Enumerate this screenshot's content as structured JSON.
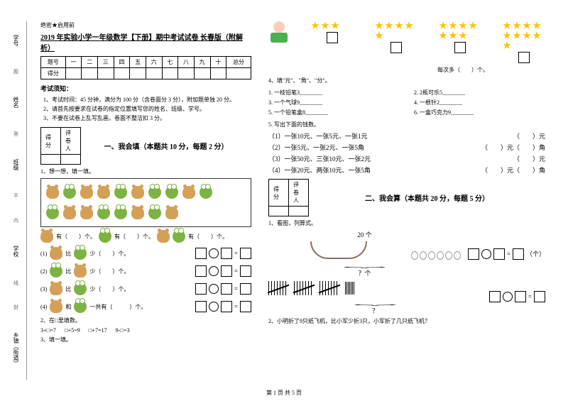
{
  "header": {
    "confidential": "绝密★启用前",
    "title": "2019 年实验小学一年级数学【下册】期中考试试卷 长春版（附解析）"
  },
  "sidebar": {
    "s1": "学号",
    "s2": "姓名",
    "s3": "班级",
    "s4": "学校",
    "s5": "乡镇（街道）",
    "cut": "内",
    "fold": "线",
    "seal": "封",
    "n1": "不",
    "n2": "答",
    "n3": "题"
  },
  "score_table": {
    "h0": "题号",
    "h1": "一",
    "h2": "二",
    "h3": "三",
    "h4": "四",
    "h5": "五",
    "h6": "六",
    "h7": "七",
    "h8": "八",
    "h9": "九",
    "h10": "十",
    "h11": "总分",
    "r": "得分"
  },
  "notice": {
    "title": "考试须知：",
    "l1": "1、考试时间：45 分钟，满分为 100 分（含卷面分 3 分），附加题单独 20 分。",
    "l2": "2、请首先按要求在试卷的指定位置填写您的姓名、班级、学号。",
    "l3": "3、不要在试卷上乱写乱画，卷面不整洁扣 3 分。"
  },
  "mini": {
    "c1": "得分",
    "c2": "评卷人"
  },
  "s1": {
    "title": "一、我会填（本题共 10 分，每题 2 分）",
    "q1": "1、想一想，填一填。",
    "count": "有（　　）个。",
    "cb": "有（　　）个。",
    "cf": "有（　　）个。",
    "cmp1": "(1)",
    "cmp2": "(2)",
    "cmp3": "(3)",
    "cmp4": "(4)",
    "less": "少（　　）个。",
    "sum": "一共有（　　　）个。",
    "than": "比",
    "and": "和",
    "q2": "2、在□里填数。",
    "e1": "3+□=7",
    "e2": "□+5=9",
    "e3": "□+7=17",
    "e4": "9-□=3",
    "q3": "3、填一填。"
  },
  "right": {
    "each": "每次多（　　）个。",
    "q4": "4、填\"元\"、\"角\"、\"分\"。",
    "l41": "1. 一枝铅笔3________",
    "l42": "2. 2瓶可乐5________",
    "l43": "3. 一个气球9________",
    "l44": "4. 一根针2________",
    "l45": "5. 一个铅笔盒8________",
    "l46": "6. 一盒巧克力9________",
    "q5": "5. 写出下面的钱数。",
    "m1": "（1）一张10元、一张5元、一张1元",
    "m2": "（2）一张5元、一张2元、一张5角",
    "m3": "（3）一张50元、三张10元、一张2元",
    "m4": "（4）一张20元、两张10元、一张5角",
    "yuan": "（　　）元",
    "yj": "（　　）元（　　）角"
  },
  "s2": {
    "title": "二、我会算（本题共 20 分，每题 5 分）",
    "q1": "1、看图，列算式。",
    "twenty": "20 个",
    "qm": "？个",
    "unit": "（个）",
    "q2": "2、小明折了9只纸飞机，比小军少折3只，小军折了几只纸飞机？",
    "qm2": "？"
  },
  "footer": "第 1 页 共 5 页"
}
